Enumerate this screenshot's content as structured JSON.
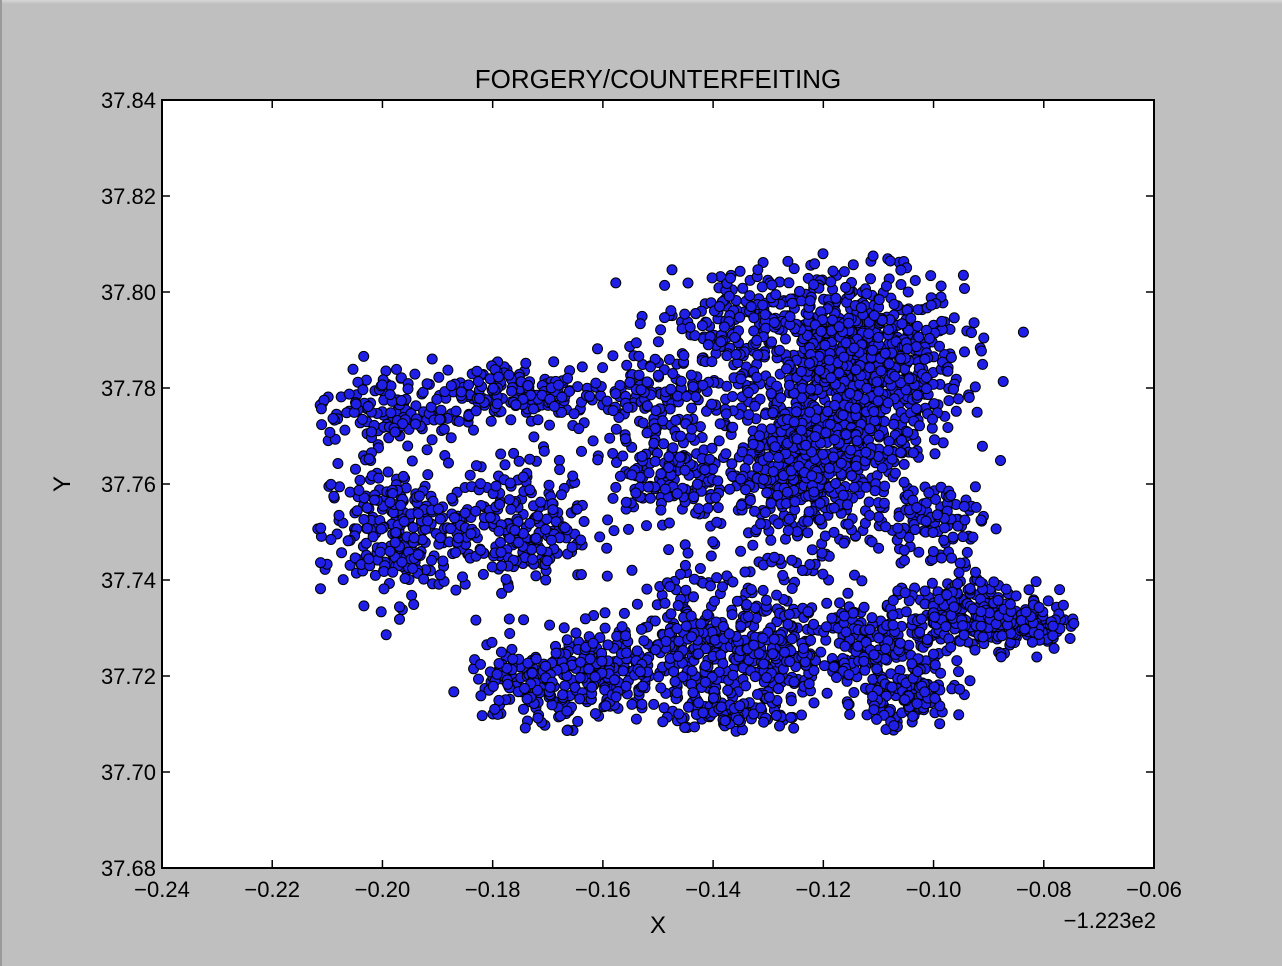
{
  "chart_data": {
    "type": "scatter",
    "title": "FORGERY/COUNTERFEITING",
    "xlabel": "X",
    "ylabel": "Y",
    "x_offset_label": "−1.223e2",
    "xlim": [
      -0.24,
      -0.06
    ],
    "ylim": [
      37.68,
      37.84
    ],
    "x_ticks": [
      "−0.24",
      "−0.22",
      "−0.20",
      "−0.18",
      "−0.16",
      "−0.14",
      "−0.12",
      "−0.10",
      "−0.08",
      "−0.06"
    ],
    "y_ticks": [
      "37.68",
      "37.70",
      "37.72",
      "37.74",
      "37.76",
      "37.78",
      "37.80",
      "37.82",
      "37.84"
    ],
    "grid": false,
    "marker_color": "#1f1fe8",
    "marker_edge_color": "#000000",
    "series": [
      {
        "clusters": [
          {
            "cx": -0.114,
            "cy": 37.784,
            "rx": 0.016,
            "ry": 0.016,
            "n": 900
          },
          {
            "cx": -0.123,
            "cy": 37.762,
            "rx": 0.013,
            "ry": 0.014,
            "n": 500
          },
          {
            "cx": -0.136,
            "cy": 37.795,
            "rx": 0.012,
            "ry": 0.009,
            "n": 160
          },
          {
            "cx": -0.2,
            "cy": 37.775,
            "rx": 0.01,
            "ry": 0.007,
            "n": 130
          },
          {
            "cx": -0.175,
            "cy": 37.779,
            "rx": 0.014,
            "ry": 0.006,
            "n": 180
          },
          {
            "cx": -0.15,
            "cy": 37.779,
            "rx": 0.013,
            "ry": 0.007,
            "n": 140
          },
          {
            "cx": -0.198,
            "cy": 37.75,
            "rx": 0.011,
            "ry": 0.012,
            "n": 260
          },
          {
            "cx": -0.175,
            "cy": 37.752,
            "rx": 0.011,
            "ry": 0.011,
            "n": 230
          },
          {
            "cx": -0.148,
            "cy": 37.762,
            "rx": 0.009,
            "ry": 0.009,
            "n": 160
          },
          {
            "cx": -0.16,
            "cy": 37.72,
            "rx": 0.008,
            "ry": 0.008,
            "n": 200
          },
          {
            "cx": -0.175,
            "cy": 37.718,
            "rx": 0.008,
            "ry": 0.007,
            "n": 120
          },
          {
            "cx": -0.145,
            "cy": 37.728,
            "rx": 0.01,
            "ry": 0.012,
            "n": 200
          },
          {
            "cx": -0.13,
            "cy": 37.725,
            "rx": 0.01,
            "ry": 0.012,
            "n": 240
          },
          {
            "cx": -0.11,
            "cy": 37.725,
            "rx": 0.01,
            "ry": 0.01,
            "n": 220
          },
          {
            "cx": -0.092,
            "cy": 37.733,
            "rx": 0.01,
            "ry": 0.006,
            "n": 200
          },
          {
            "cx": -0.082,
            "cy": 37.731,
            "rx": 0.006,
            "ry": 0.004,
            "n": 80
          },
          {
            "cx": -0.1,
            "cy": 37.752,
            "rx": 0.008,
            "ry": 0.008,
            "n": 100
          },
          {
            "cx": -0.105,
            "cy": 37.715,
            "rx": 0.008,
            "ry": 0.005,
            "n": 90
          },
          {
            "cx": -0.138,
            "cy": 37.712,
            "rx": 0.01,
            "ry": 0.004,
            "n": 100
          }
        ]
      }
    ]
  }
}
